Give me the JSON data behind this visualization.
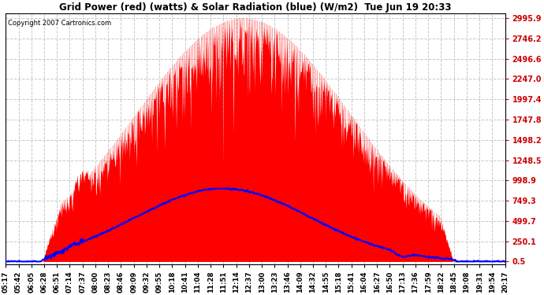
{
  "title": "Grid Power (red) (watts) & Solar Radiation (blue) (W/m2)  Tue Jun 19 20:33",
  "copyright": "Copyright 2007 Cartronics.com",
  "yticks": [
    0.5,
    250.1,
    499.7,
    749.3,
    998.9,
    1248.5,
    1498.2,
    1747.8,
    1997.4,
    2247.0,
    2496.6,
    2746.2,
    2995.9
  ],
  "ymin": 0.5,
  "ymax": 2995.9,
  "background_color": "#ffffff",
  "grid_color": "#c8c8c8",
  "fill_color": "#ff0000",
  "solar_color": "#0000ff",
  "title_color": "#000000",
  "x_labels": [
    "05:17",
    "05:42",
    "06:05",
    "06:28",
    "06:51",
    "07:14",
    "07:37",
    "08:00",
    "08:23",
    "08:46",
    "09:09",
    "09:32",
    "09:55",
    "10:18",
    "10:41",
    "11:04",
    "11:28",
    "11:51",
    "12:14",
    "12:37",
    "13:00",
    "13:23",
    "13:46",
    "14:09",
    "14:32",
    "14:55",
    "15:18",
    "15:41",
    "16:04",
    "16:27",
    "16:50",
    "17:13",
    "17:36",
    "17:59",
    "18:22",
    "18:45",
    "19:08",
    "19:31",
    "19:54",
    "20:17"
  ]
}
